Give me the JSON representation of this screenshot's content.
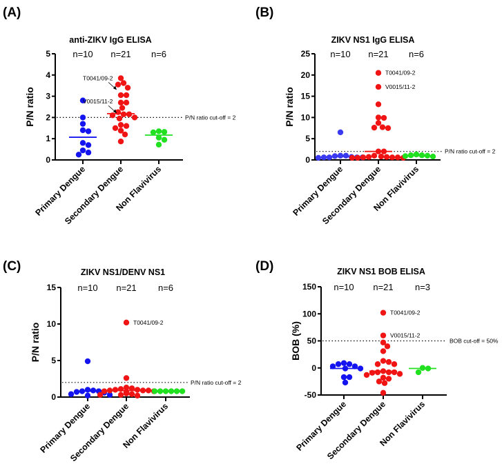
{
  "chart_data": [
    {
      "type": "scatter",
      "panel_label": "(A)",
      "title": "anti-ZIKV IgG ELISA",
      "ylabel": "P/N ratio",
      "ylim": [
        0,
        5
      ],
      "yticks": [
        0,
        1,
        2,
        3,
        4,
        5
      ],
      "categories": [
        "Primary Dengue",
        "Secondary Dengue",
        "Non Flavivirus"
      ],
      "n_labels": [
        "n=10",
        "n=21",
        "n=6"
      ],
      "cutoff": {
        "value": 2,
        "label": "P/N ratio cut-off = 2"
      },
      "annotations": [
        {
          "text": "T0041/09-2",
          "category": "Secondary Dengue",
          "value": 3.3,
          "arrow": true
        },
        {
          "text": "V0015/11-2",
          "category": "Secondary Dengue",
          "value": 2.2,
          "arrow": true
        }
      ],
      "series": [
        {
          "name": "Primary Dengue",
          "color": "#1414f0",
          "median": 1.07,
          "values": [
            2.8,
            2.0,
            1.7,
            1.35,
            1.4,
            0.8,
            0.7,
            0.45,
            0.25,
            0.35
          ]
        },
        {
          "name": "Secondary Dengue",
          "color": "#f01414",
          "median": 2.18,
          "values": [
            3.85,
            3.62,
            3.55,
            3.4,
            3.05,
            3.05,
            2.7,
            2.7,
            2.45,
            2.25,
            2.15,
            2.15,
            2.1,
            2.0,
            1.95,
            1.65,
            1.6,
            1.5,
            1.38,
            1.2,
            0.87
          ]
        },
        {
          "name": "Non Flavivirus",
          "color": "#20e020",
          "median": 1.17,
          "values": [
            1.35,
            1.3,
            1.32,
            1.05,
            0.95,
            0.72
          ]
        }
      ]
    },
    {
      "type": "scatter",
      "panel_label": "(B)",
      "title": "ZIKV NS1 IgG ELISA",
      "ylabel": "P/N ratio",
      "ylim": [
        0,
        25
      ],
      "yticks": [
        0,
        5,
        10,
        15,
        20,
        25
      ],
      "categories": [
        "Primary Dengue",
        "Secondary Dengue",
        "Non Flavivirus"
      ],
      "n_labels": [
        "n=10",
        "n=21",
        "n=6"
      ],
      "cutoff": {
        "value": 2,
        "label": "P/N ratio cut-off = 2"
      },
      "annotations": [
        {
          "text": "T0041/09-2",
          "category": "Secondary Dengue",
          "value": 20.5,
          "arrow": false
        },
        {
          "text": "V0015/11-2",
          "category": "Secondary Dengue",
          "value": 17.2,
          "arrow": false
        }
      ],
      "series": [
        {
          "name": "Primary Dengue",
          "color": "#3a3af0",
          "median": 0.8,
          "values": [
            6.5,
            1.0,
            1.0,
            0.9,
            0.7,
            0.6,
            0.6,
            0.5,
            0.6,
            0.6
          ]
        },
        {
          "name": "Secondary Dengue",
          "color": "#f01414",
          "median": 2.0,
          "values": [
            20.5,
            17.2,
            13.1,
            10.0,
            9.9,
            8.7,
            7.7,
            7.5,
            7.6,
            2.0,
            2.0,
            1.0,
            0.8,
            0.7,
            0.6,
            0.5,
            0.5,
            0.5,
            0.6,
            0.7,
            0.6
          ]
        },
        {
          "name": "Non Flavivirus",
          "color": "#20e020",
          "median": 1.0,
          "values": [
            1.0,
            1.3,
            1.1,
            1.1,
            0.8,
            0.9
          ]
        }
      ]
    },
    {
      "type": "scatter",
      "panel_label": "(C)",
      "title": "ZIKV NS1/DENV NS1",
      "ylabel": "P/N ratio",
      "ylim": [
        0,
        15
      ],
      "yticks": [
        0,
        5,
        10,
        15
      ],
      "categories": [
        "Primary Dengue",
        "Secondary Dengue",
        "Non Flavivirus"
      ],
      "n_labels": [
        "n=10",
        "n=21",
        "n=6"
      ],
      "cutoff": {
        "value": 2,
        "label": "P/N ratio cut-off = 2"
      },
      "annotations": [
        {
          "text": "T0041/09-2",
          "category": "Secondary Dengue",
          "value": 10.2,
          "arrow": false
        }
      ],
      "series": [
        {
          "name": "Primary Dengue",
          "color": "#1414f0",
          "median": 0.8,
          "values": [
            4.9,
            1.0,
            0.9,
            0.8,
            0.8,
            0.7,
            0.6,
            0.4,
            0.2,
            0.3
          ]
        },
        {
          "name": "Secondary Dengue",
          "color": "#f01414",
          "median": 0.9,
          "values": [
            10.2,
            2.6,
            1.3,
            1.2,
            1.1,
            1.0,
            1.0,
            0.9,
            0.9,
            0.9,
            0.8,
            0.8,
            0.7,
            0.7,
            0.6,
            0.5,
            0.5,
            0.4,
            0.3,
            0.3,
            0.2
          ]
        },
        {
          "name": "Non Flavivirus",
          "color": "#20e020",
          "median": 0.8,
          "values": [
            0.8,
            0.8,
            0.8,
            0.8,
            0.8,
            0.8
          ]
        }
      ]
    },
    {
      "type": "scatter",
      "panel_label": "(D)",
      "title": "ZIKV NS1 BOB ELISA",
      "ylabel": "BOB (%)",
      "ylim": [
        -50,
        150
      ],
      "yticks": [
        -50,
        0,
        50,
        100,
        150
      ],
      "categories": [
        "Primary Dengue",
        "Secondary Dengue",
        "Non Flavivirus"
      ],
      "n_labels": [
        "n=10",
        "n=21",
        "n=3"
      ],
      "cutoff": {
        "value": 50,
        "label": "BOB cut-off = 50%"
      },
      "annotations": [
        {
          "text": "T0041/09-2",
          "category": "Secondary Dengue",
          "value": 102,
          "arrow": false
        },
        {
          "text": "V0015/11-2",
          "category": "Secondary Dengue",
          "value": 60,
          "arrow": false
        }
      ],
      "series": [
        {
          "name": "Primary Dengue",
          "color": "#1414f0",
          "median": -1,
          "values": [
            7,
            9,
            3,
            7,
            -1,
            -1,
            -17,
            -17,
            -27,
            3
          ]
        },
        {
          "name": "Secondary Dengue",
          "color": "#f01414",
          "median": -6,
          "values": [
            102,
            60,
            47,
            40,
            31,
            11,
            7,
            7,
            13,
            -6,
            -8,
            -8,
            -11,
            -8,
            -9,
            -13,
            -18,
            -25,
            -20,
            -28,
            -46
          ]
        },
        {
          "name": "Non Flavivirus",
          "color": "#20e020",
          "median": -1,
          "values": [
            -8,
            0,
            -1
          ]
        }
      ]
    }
  ]
}
